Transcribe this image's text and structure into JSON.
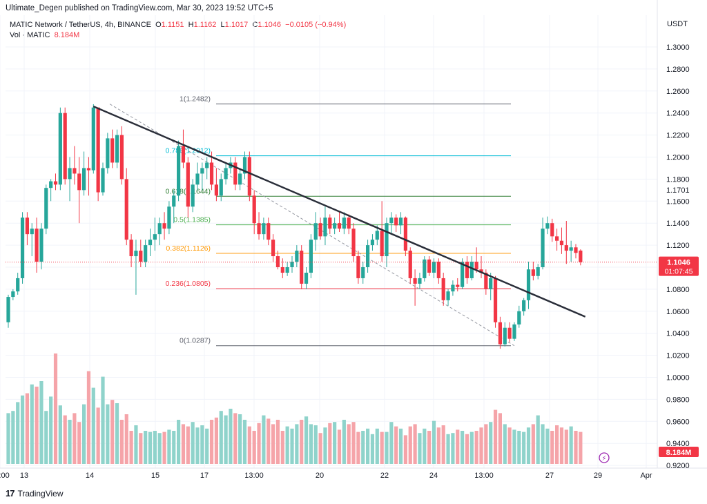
{
  "attribution": "Ultimate_Degen published on TradingView.com, Mar 30, 2023 19:52 UTC+5",
  "legend": {
    "symbol": "MATIC Network / TetherUS, 4h, BINANCE",
    "o_label": "O",
    "o": "1.1151",
    "h_label": "H",
    "h": "1.1162",
    "l_label": "L",
    "l": "1.1017",
    "c_label": "C",
    "c": "1.1046",
    "change": "−0.0105 (−0.94%)",
    "vol_label": "Vol · MATIC",
    "vol": "8.184M"
  },
  "currency": "USDT",
  "footer": {
    "brand": "TradingView"
  },
  "colors": {
    "up": "#26a69a",
    "down": "#f23645",
    "vol_up": "#8fd3cb",
    "vol_down": "#f5a4a9",
    "trendline": "#2a2e39"
  },
  "chart_data": {
    "type": "candlestick",
    "title": "MATIC Network / TetherUS, 4h, BINANCE",
    "ylabel": "USDT",
    "ylim": [
      0.92,
      1.32
    ],
    "y_ticks": [
      "1.3000",
      "1.2800",
      "1.2600",
      "1.2400",
      "1.2200",
      "1.2000",
      "1.1800",
      "1.1600",
      "1.1400",
      "1.1200",
      "1.1000",
      "1.0800",
      "1.0600",
      "1.0400",
      "1.0200",
      "1.0000",
      "0.9800",
      "0.9600",
      "0.9400",
      "0.9200"
    ],
    "x_ticks": [
      "13",
      "14",
      "15",
      "17",
      "13:00",
      "20",
      "22",
      "24",
      "13:00",
      "27",
      "29",
      "13:00",
      "Apr"
    ],
    "price_labels": [
      {
        "value": "1.1701",
        "kind": "plain"
      },
      {
        "value": "1.1046",
        "kind": "current",
        "countdown": "01:07:45"
      },
      {
        "value": "8.184M",
        "kind": "volume"
      }
    ],
    "fib_levels": [
      {
        "ratio": "1",
        "price": 1.2482,
        "label": "1(1.2482)",
        "color": "#5d606b"
      },
      {
        "ratio": "0.786",
        "price": 1.2012,
        "label": "0.786(1.2012)",
        "color": "#00bcd4"
      },
      {
        "ratio": "0.618",
        "price": 1.1644,
        "label": "0.618(1.1644)",
        "color": "#2e7d32"
      },
      {
        "ratio": "0.5",
        "price": 1.1385,
        "label": "0.5(1.1385)",
        "color": "#4caf50"
      },
      {
        "ratio": "0.382",
        "price": 1.1126,
        "label": "0.382(1.1126)",
        "color": "#ff9800"
      },
      {
        "ratio": "0.236",
        "price": 1.0805,
        "label": "0.236(1.0805)",
        "color": "#f23645"
      },
      {
        "ratio": "0",
        "price": 1.0287,
        "label": "0(1.0287)",
        "color": "#5d606b"
      }
    ],
    "candles": [
      [
        1.05,
        1.075,
        1.045,
        1.073
      ],
      [
        1.073,
        1.08,
        1.07,
        1.078
      ],
      [
        1.078,
        1.095,
        1.075,
        1.09
      ],
      [
        1.09,
        1.15,
        1.085,
        1.145
      ],
      [
        1.145,
        1.15,
        1.12,
        1.13
      ],
      [
        1.13,
        1.14,
        1.11,
        1.135
      ],
      [
        1.135,
        1.145,
        1.095,
        1.105
      ],
      [
        1.105,
        1.14,
        1.098,
        1.135
      ],
      [
        1.135,
        1.175,
        1.13,
        1.172
      ],
      [
        1.172,
        1.18,
        1.16,
        1.178
      ],
      [
        1.178,
        1.185,
        1.17,
        1.175
      ],
      [
        1.175,
        1.245,
        1.17,
        1.24
      ],
      [
        1.24,
        1.245,
        1.175,
        1.18
      ],
      [
        1.18,
        1.2,
        1.16,
        1.19
      ],
      [
        1.19,
        1.21,
        1.175,
        1.185
      ],
      [
        1.185,
        1.2,
        1.14,
        1.17
      ],
      [
        1.17,
        1.205,
        1.165,
        1.19
      ],
      [
        1.19,
        1.2,
        1.165,
        1.188
      ],
      [
        1.188,
        1.248,
        1.185,
        1.245
      ],
      [
        1.245,
        1.245,
        1.16,
        1.168
      ],
      [
        1.168,
        1.195,
        1.165,
        1.19
      ],
      [
        1.19,
        1.222,
        1.185,
        1.217
      ],
      [
        1.217,
        1.225,
        1.19,
        1.195
      ],
      [
        1.195,
        1.225,
        1.19,
        1.22
      ],
      [
        1.22,
        1.228,
        1.175,
        1.18
      ],
      [
        1.18,
        1.19,
        1.12,
        1.125
      ],
      [
        1.125,
        1.13,
        1.1,
        1.11
      ],
      [
        1.11,
        1.125,
        1.075,
        1.115
      ],
      [
        1.115,
        1.125,
        1.1,
        1.105
      ],
      [
        1.105,
        1.125,
        1.1,
        1.12
      ],
      [
        1.12,
        1.135,
        1.11,
        1.125
      ],
      [
        1.125,
        1.145,
        1.115,
        1.13
      ],
      [
        1.13,
        1.145,
        1.12,
        1.14
      ],
      [
        1.14,
        1.15,
        1.125,
        1.135
      ],
      [
        1.135,
        1.16,
        1.13,
        1.155
      ],
      [
        1.155,
        1.17,
        1.14,
        1.165
      ],
      [
        1.165,
        1.215,
        1.16,
        1.21
      ],
      [
        1.21,
        1.225,
        1.19,
        1.195
      ],
      [
        1.195,
        1.2,
        1.145,
        1.155
      ],
      [
        1.155,
        1.18,
        1.15,
        1.175
      ],
      [
        1.175,
        1.195,
        1.17,
        1.185
      ],
      [
        1.185,
        1.195,
        1.17,
        1.19
      ],
      [
        1.19,
        1.2,
        1.18,
        1.195
      ],
      [
        1.195,
        1.205,
        1.17,
        1.175
      ],
      [
        1.175,
        1.19,
        1.16,
        1.165
      ],
      [
        1.165,
        1.185,
        1.16,
        1.18
      ],
      [
        1.18,
        1.195,
        1.175,
        1.19
      ],
      [
        1.19,
        1.2,
        1.185,
        1.195
      ],
      [
        1.195,
        1.2,
        1.17,
        1.175
      ],
      [
        1.175,
        1.19,
        1.17,
        1.185
      ],
      [
        1.185,
        1.205,
        1.18,
        1.2
      ],
      [
        1.2,
        1.205,
        1.16,
        1.165
      ],
      [
        1.165,
        1.17,
        1.13,
        1.14
      ],
      [
        1.14,
        1.15,
        1.125,
        1.13
      ],
      [
        1.13,
        1.145,
        1.125,
        1.14
      ],
      [
        1.14,
        1.145,
        1.12,
        1.125
      ],
      [
        1.125,
        1.13,
        1.105,
        1.11
      ],
      [
        1.11,
        1.115,
        1.098,
        1.1
      ],
      [
        1.1,
        1.108,
        1.09,
        1.095
      ],
      [
        1.095,
        1.105,
        1.092,
        1.1
      ],
      [
        1.1,
        1.11,
        1.095,
        1.105
      ],
      [
        1.105,
        1.12,
        1.1,
        1.115
      ],
      [
        1.115,
        1.12,
        1.08,
        1.085
      ],
      [
        1.085,
        1.1,
        1.08,
        1.095
      ],
      [
        1.095,
        1.13,
        1.09,
        1.125
      ],
      [
        1.125,
        1.15,
        1.115,
        1.14
      ],
      [
        1.14,
        1.145,
        1.125,
        1.128
      ],
      [
        1.128,
        1.155,
        1.12,
        1.145
      ],
      [
        1.145,
        1.148,
        1.13,
        1.135
      ],
      [
        1.135,
        1.145,
        1.13,
        1.14
      ],
      [
        1.14,
        1.15,
        1.132,
        1.135
      ],
      [
        1.135,
        1.15,
        1.13,
        1.145
      ],
      [
        1.145,
        1.148,
        1.13,
        1.135
      ],
      [
        1.135,
        1.14,
        1.105,
        1.11
      ],
      [
        1.11,
        1.115,
        1.085,
        1.09
      ],
      [
        1.09,
        1.105,
        1.085,
        1.1
      ],
      [
        1.1,
        1.125,
        1.095,
        1.12
      ],
      [
        1.12,
        1.13,
        1.115,
        1.125
      ],
      [
        1.125,
        1.138,
        1.12,
        1.133
      ],
      [
        1.133,
        1.16,
        1.105,
        1.11
      ],
      [
        1.11,
        1.145,
        1.1,
        1.14
      ],
      [
        1.14,
        1.15,
        1.13,
        1.145
      ],
      [
        1.145,
        1.148,
        1.132,
        1.138
      ],
      [
        1.138,
        1.15,
        1.13,
        1.145
      ],
      [
        1.145,
        1.146,
        1.11,
        1.115
      ],
      [
        1.115,
        1.118,
        1.085,
        1.09
      ],
      [
        1.09,
        1.098,
        1.065,
        1.085
      ],
      [
        1.085,
        1.095,
        1.08,
        1.09
      ],
      [
        1.09,
        1.11,
        1.087,
        1.107
      ],
      [
        1.107,
        1.11,
        1.092,
        1.095
      ],
      [
        1.095,
        1.108,
        1.09,
        1.105
      ],
      [
        1.105,
        1.108,
        1.085,
        1.09
      ],
      [
        1.09,
        1.095,
        1.065,
        1.07
      ],
      [
        1.07,
        1.08,
        1.065,
        1.078
      ],
      [
        1.078,
        1.088,
        1.074,
        1.084
      ],
      [
        1.084,
        1.09,
        1.078,
        1.082
      ],
      [
        1.082,
        1.108,
        1.08,
        1.105
      ],
      [
        1.105,
        1.11,
        1.085,
        1.09
      ],
      [
        1.09,
        1.11,
        1.088,
        1.105
      ],
      [
        1.105,
        1.118,
        1.095,
        1.098
      ],
      [
        1.098,
        1.11,
        1.09,
        1.095
      ],
      [
        1.095,
        1.098,
        1.075,
        1.08
      ],
      [
        1.08,
        1.095,
        1.07,
        1.09
      ],
      [
        1.09,
        1.092,
        1.045,
        1.05
      ],
      [
        1.05,
        1.055,
        1.026,
        1.03
      ],
      [
        1.03,
        1.05,
        1.028,
        1.045
      ],
      [
        1.045,
        1.05,
        1.032,
        1.035
      ],
      [
        1.035,
        1.05,
        1.033,
        1.048
      ],
      [
        1.048,
        1.065,
        1.045,
        1.06
      ],
      [
        1.06,
        1.072,
        1.056,
        1.07
      ],
      [
        1.07,
        1.105,
        1.062,
        1.098
      ],
      [
        1.098,
        1.105,
        1.088,
        1.092
      ],
      [
        1.092,
        1.103,
        1.089,
        1.1
      ],
      [
        1.1,
        1.145,
        1.098,
        1.135
      ],
      [
        1.135,
        1.146,
        1.13,
        1.14
      ],
      [
        1.14,
        1.144,
        1.123,
        1.128
      ],
      [
        1.128,
        1.135,
        1.115,
        1.124
      ],
      [
        1.124,
        1.136,
        1.112,
        1.12
      ],
      [
        1.12,
        1.142,
        1.103,
        1.115
      ],
      [
        1.115,
        1.124,
        1.105,
        1.118
      ],
      [
        1.118,
        1.121,
        1.108,
        1.113
      ],
      [
        1.1151,
        1.1162,
        1.1017,
        1.1046
      ]
    ],
    "volume": [
      46,
      48,
      56,
      62,
      64,
      72,
      70,
      75,
      48,
      61,
      100,
      53,
      44,
      40,
      46,
      38,
      54,
      84,
      69,
      51,
      79,
      54,
      58,
      55,
      40,
      45,
      30,
      35,
      28,
      30,
      29,
      30,
      28,
      29,
      31,
      30,
      40,
      36,
      34,
      38,
      33,
      35,
      32,
      40,
      42,
      48,
      44,
      50,
      46,
      45,
      40,
      34,
      30,
      37,
      44,
      41,
      36,
      40,
      30,
      34,
      32,
      36,
      40,
      43,
      36,
      35,
      28,
      33,
      37,
      38,
      31,
      40,
      36,
      38,
      29,
      30,
      32,
      27,
      32,
      29,
      29,
      38,
      34,
      32,
      26,
      34,
      36,
      28,
      32,
      30,
      39,
      33,
      35,
      27,
      28,
      31,
      30,
      27,
      29,
      30,
      33,
      36,
      38,
      49,
      46,
      36,
      33,
      31,
      30,
      29,
      33,
      36,
      44,
      36,
      32,
      30,
      35,
      33,
      31,
      34,
      30,
      29
    ],
    "trendline": {
      "from_index": 18,
      "from_price": 1.246,
      "to_index": 122,
      "to_price": 1.055
    },
    "fib_diagonal": {
      "from_index": 20,
      "from_price": 1.2482,
      "to_index": 107,
      "to_price": 1.0287
    }
  }
}
